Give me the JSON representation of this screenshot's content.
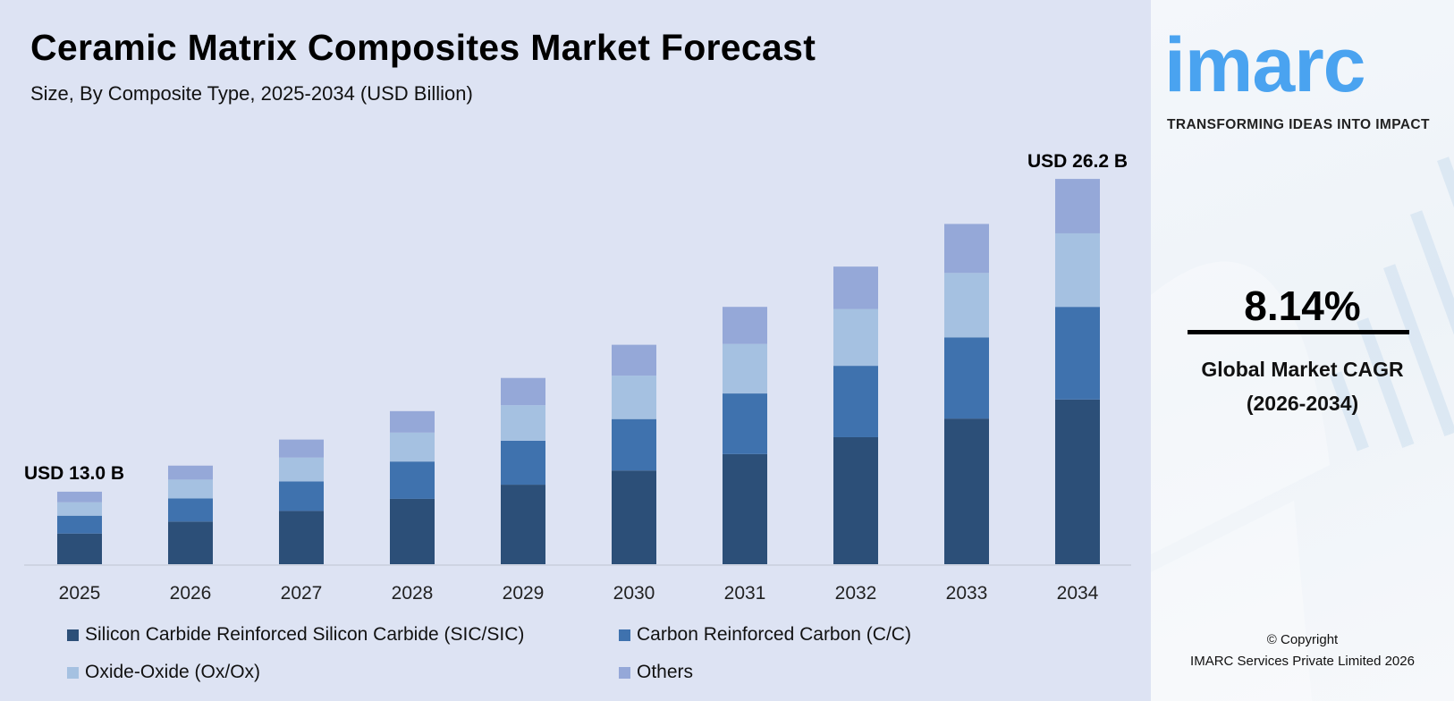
{
  "header": {
    "title": "Ceramic Matrix Composites Market Forecast",
    "subtitle": "Size, By Composite Type, 2025-2034 (USD Billion)"
  },
  "chart_data": {
    "type": "bar",
    "stacked": true,
    "categories": [
      "2025",
      "2026",
      "2027",
      "2028",
      "2029",
      "2030",
      "2031",
      "2032",
      "2033",
      "2034"
    ],
    "series": [
      {
        "name": "Silicon Carbide Reinforced Silicon Carbide (SIC/SIC)",
        "color": "#2c4f78",
        "values": [
          5.5,
          6.1,
          6.5,
          7.0,
          7.6,
          8.2,
          8.9,
          9.6,
          10.4,
          11.2
        ]
      },
      {
        "name": "Carbon Reinforced Carbon (C/C)",
        "color": "#3f72ae",
        "values": [
          3.2,
          3.3,
          3.6,
          4.0,
          4.2,
          4.5,
          4.9,
          5.4,
          5.8,
          6.3
        ]
      },
      {
        "name": "Oxide-Oxide (Ox/Ox)",
        "color": "#a5c1e1",
        "values": [
          2.4,
          2.7,
          2.9,
          3.1,
          3.4,
          3.8,
          4.0,
          4.3,
          4.6,
          5.0
        ]
      },
      {
        "name": "Others",
        "color": "#95a8d8",
        "values": [
          1.9,
          2.0,
          2.2,
          2.3,
          2.6,
          2.7,
          3.0,
          3.2,
          3.5,
          3.7
        ]
      }
    ],
    "annotations": {
      "first": "USD 13.0 B",
      "last": "USD 26.2 B"
    },
    "xlabel": "",
    "ylabel": "",
    "grid": false,
    "legend_placement": "bottom"
  },
  "side": {
    "logo": "imarc",
    "tagline": "TRANSFORMING IDEAS INTO IMPACT",
    "cagr_value": "8.14%",
    "cagr_label": "Global Market CAGR",
    "cagr_period": "(2026-2034)",
    "copyright_line1": "© Copyright",
    "copyright_line2": "IMARC Services Private Limited 2026"
  },
  "colors": {
    "background": "#dde3f3",
    "brand": "#4aa3f0"
  }
}
